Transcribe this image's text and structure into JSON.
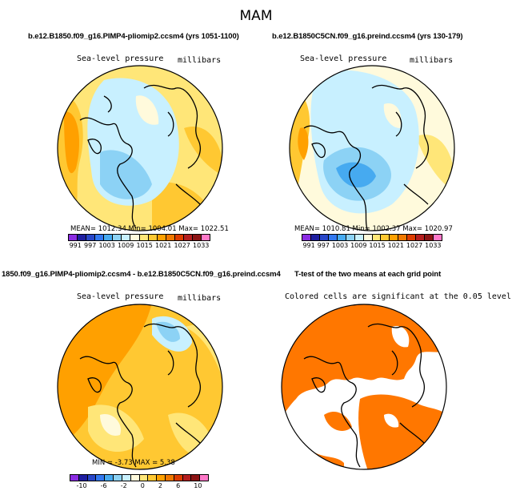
{
  "figure": {
    "title": "MAM"
  },
  "panels": [
    {
      "title": "b.e12.B1850.f09_g16.PIMP4-pliomip2.ccsm4 (yrs 1051-1100)",
      "left_label": "Sea-level pressure",
      "right_label": "millibars",
      "stats": "MEAN= 1012.34   Min= 1004.01   Max= 1022.51",
      "colorbar_ticks": [
        "991",
        "997",
        "1003",
        "1009",
        "1015",
        "1021",
        "1027",
        "1033"
      ]
    },
    {
      "title": "b.e12.B1850C5CN.f09_g16.preind.ccsm4 (yrs 130-179)",
      "left_label": "Sea-level pressure",
      "right_label": "millibars",
      "stats": "MEAN= 1010.81   Min= 1002.37   Max= 1020.97",
      "colorbar_ticks": [
        "991",
        "997",
        "1003",
        "1009",
        "1015",
        "1021",
        "1027",
        "1033"
      ]
    },
    {
      "title": "1850.f09_g16.PIMP4-pliomip2.ccsm4 - b.e12.B1850C5CN.f09_g16.preind.ccsm4",
      "left_label": "Sea-level pressure",
      "right_label": "millibars",
      "stats": "MIN =  -3.73  MAX =   5.38",
      "colorbar_ticks": [
        "-10",
        "-6",
        "-2",
        "0",
        "2",
        "6",
        "10"
      ]
    },
    {
      "title": "T-test of the two means at each grid point",
      "subtitle": "Colored cells are significant at the 0.05 level"
    }
  ],
  "colors": {
    "colorbar": [
      "#8a2be2",
      "#1e1ea0",
      "#2846c8",
      "#3278f0",
      "#46aaf0",
      "#8cd2f5",
      "#c8f0ff",
      "#fffadc",
      "#ffe678",
      "#ffc832",
      "#ffa000",
      "#f07800",
      "#dc3c00",
      "#b41e1e",
      "#8c1414",
      "#ff78c8"
    ],
    "significant": "#ff7700",
    "land_outline": "#000000"
  }
}
